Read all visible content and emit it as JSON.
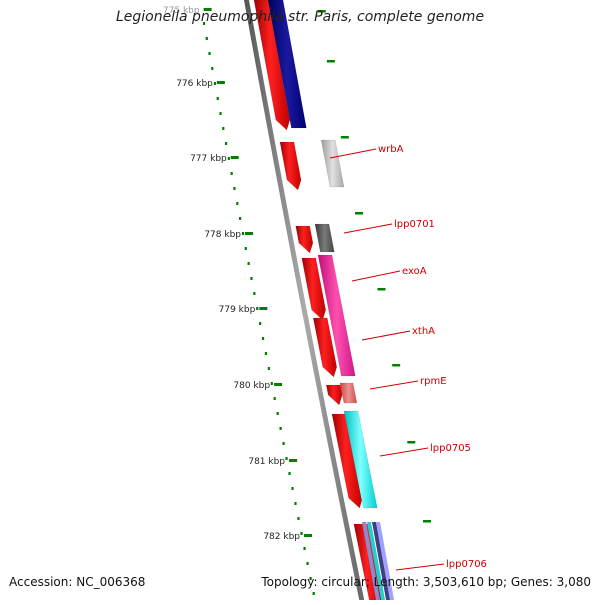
{
  "title": "Legionella pneumophila str. Paris, complete genome",
  "accession_label": "Accession: NC_006368",
  "topology_label": "Topology: circular; Length: 3,503,610 bp; Genes: 3,080",
  "colors": {
    "forward_cds": "#ff0000",
    "backbone": "#808080",
    "ticks": "#008000",
    "label": "#cc0000"
  },
  "axis": {
    "ticks": [
      {
        "label": "775 kbp"
      },
      {
        "label": "776 kbp"
      },
      {
        "label": "777 kbp"
      },
      {
        "label": "778 kbp"
      },
      {
        "label": "779 kbp"
      },
      {
        "label": "780 kbp"
      },
      {
        "label": "781 kbp"
      },
      {
        "label": "782 kbp"
      }
    ]
  },
  "gene_labels": [
    {
      "name": "wrbA"
    },
    {
      "name": "lpp0701"
    },
    {
      "name": "exoA"
    },
    {
      "name": "xthA"
    },
    {
      "name": "rpmE"
    },
    {
      "name": "lpp0705"
    },
    {
      "name": "lpp0706"
    }
  ]
}
